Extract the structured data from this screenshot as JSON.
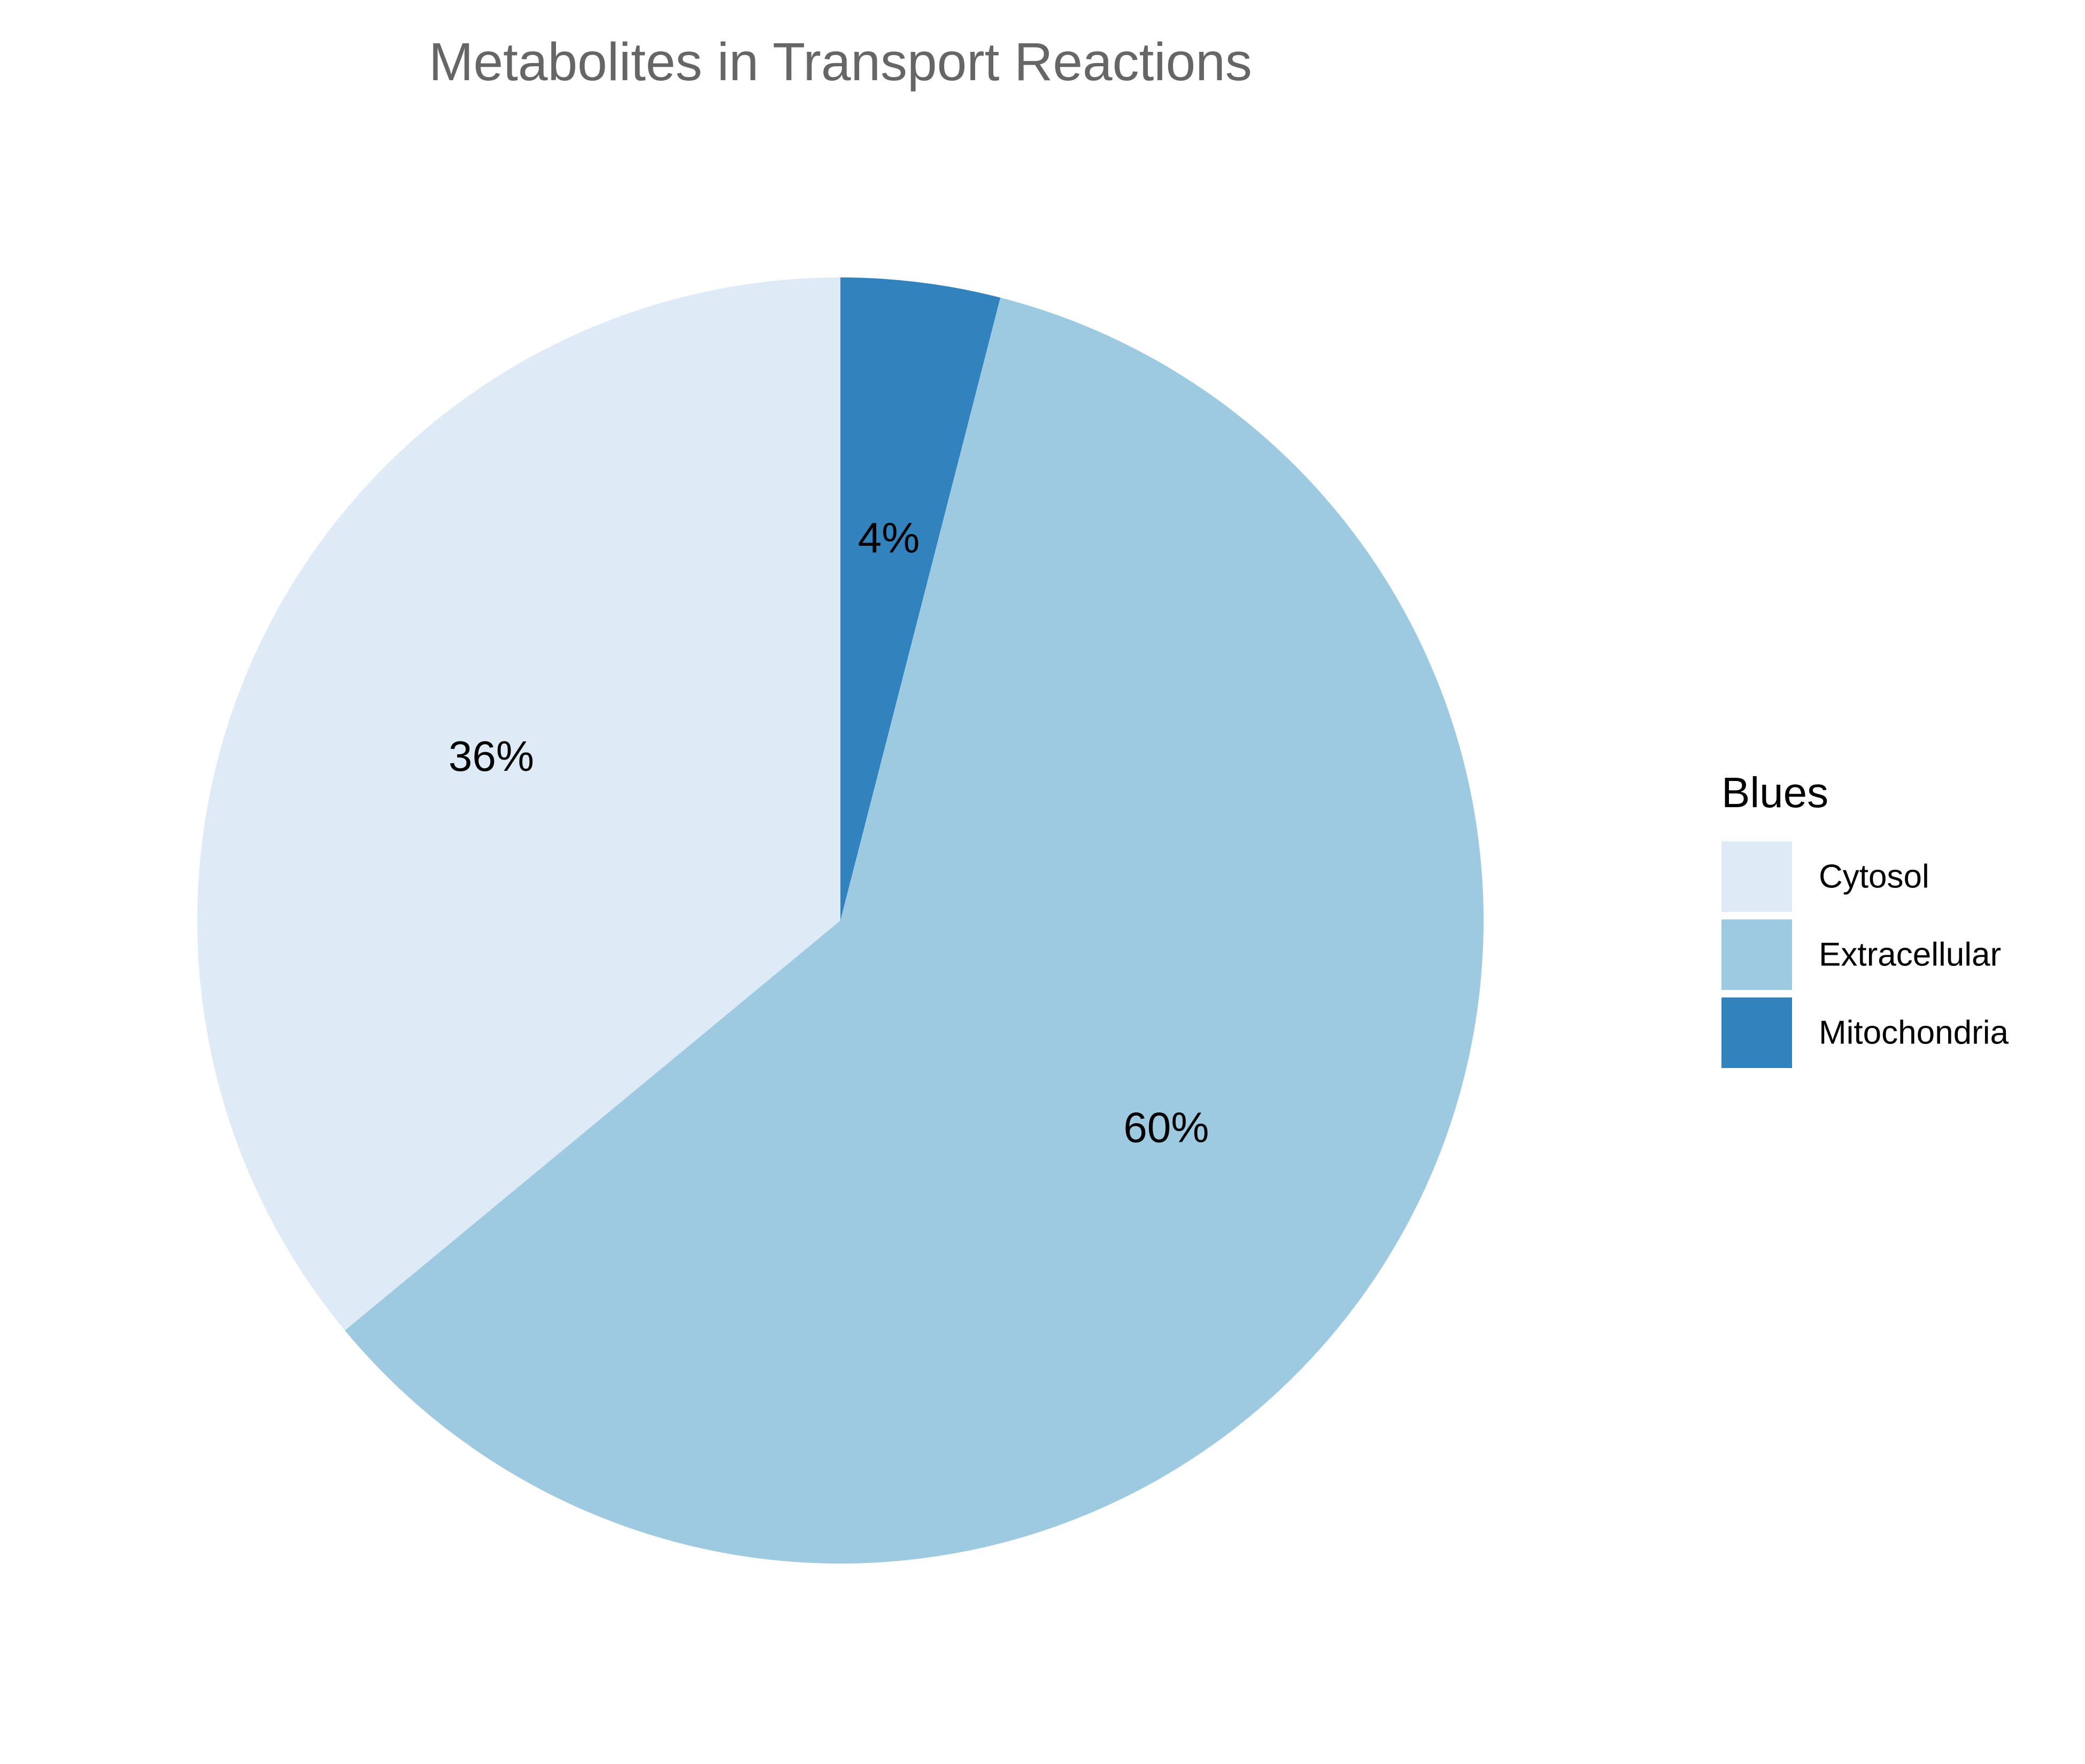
{
  "chart_data": {
    "type": "pie",
    "title": "Metabolites in Transport Reactions",
    "start_angle": "12 o'clock, clockwise",
    "categories": [
      "Mitochondria",
      "Extracellular",
      "Cytosol"
    ],
    "values": [
      4,
      60,
      36
    ],
    "value_labels": [
      "4%",
      "60%",
      "36%"
    ],
    "colors": {
      "Cytosol": "#deebf7",
      "Extracellular": "#9ecae1",
      "Mitochondria": "#3182bd"
    },
    "legend": {
      "title": "Blues",
      "placement": "right",
      "items": [
        "Cytosol",
        "Extracellular",
        "Mitochondria"
      ]
    }
  }
}
